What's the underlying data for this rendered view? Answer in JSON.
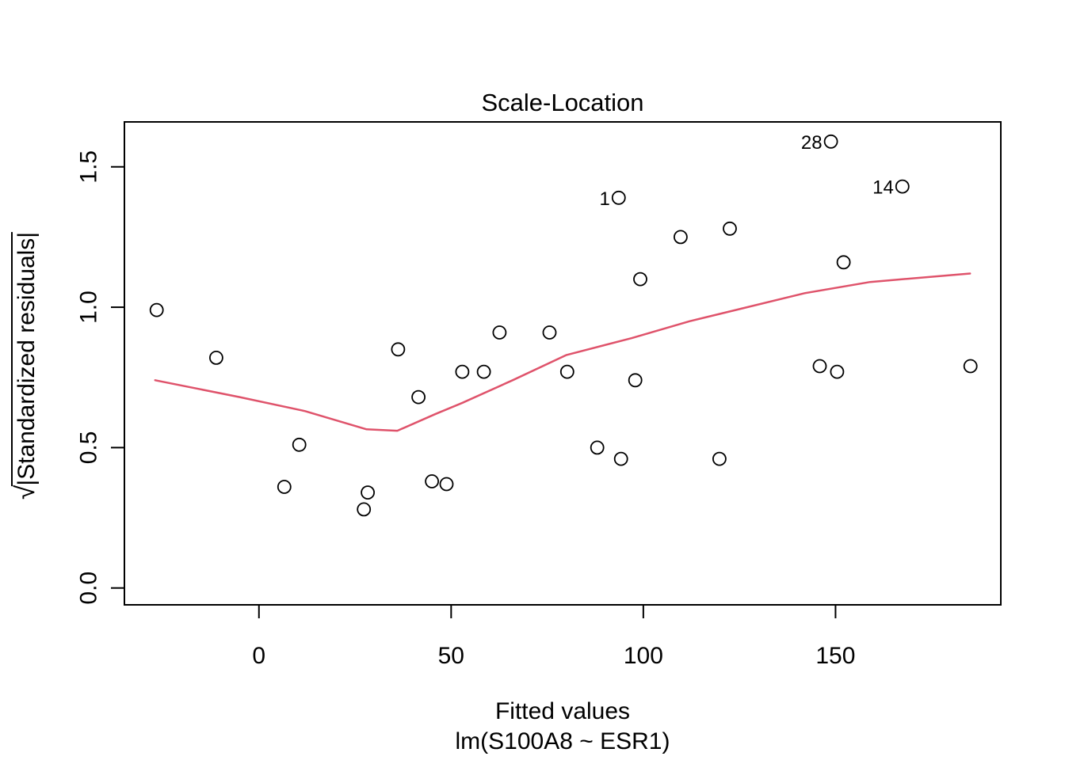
{
  "figure": {
    "title": "Scale-Location",
    "xlabel": "Fitted values",
    "xlabel2": "lm(S100A8 ~ ESR1)",
    "ylabel_radical": "√",
    "ylabel_text": "|Standardized residuals|",
    "colors": {
      "smooth_line": "#DF536B",
      "points": "#000000",
      "background": "#FFFFFF"
    }
  },
  "chart_data": {
    "type": "scatter",
    "title": "Scale-Location",
    "xlabel": "Fitted values",
    "sublabel": "lm(S100A8 ~ ESR1)",
    "ylabel": "√|Standardized residuals|",
    "grid": false,
    "legend": false,
    "xlim": [
      -35,
      193
    ],
    "ylim": [
      -0.06,
      1.66
    ],
    "x_ticks": [
      0,
      50,
      100,
      150
    ],
    "x_tick_labels": [
      "0",
      "50",
      "100",
      "150"
    ],
    "y_ticks": [
      0.0,
      0.5,
      1.0,
      1.5
    ],
    "y_tick_labels": [
      "0.0",
      "0.5",
      "1.0",
      "1.5"
    ],
    "points": [
      [
        -26.6,
        0.99
      ],
      [
        -11.1,
        0.82
      ],
      [
        6.6,
        0.36
      ],
      [
        10.5,
        0.51
      ],
      [
        27.3,
        0.28
      ],
      [
        28.3,
        0.34
      ],
      [
        36.2,
        0.85
      ],
      [
        41.5,
        0.68
      ],
      [
        45.0,
        0.38
      ],
      [
        48.8,
        0.37
      ],
      [
        52.9,
        0.77
      ],
      [
        58.5,
        0.77
      ],
      [
        62.6,
        0.91
      ],
      [
        75.6,
        0.91
      ],
      [
        80.2,
        0.77
      ],
      [
        88.0,
        0.5
      ],
      [
        94.2,
        0.46
      ],
      [
        97.9,
        0.74
      ],
      [
        99.2,
        1.1
      ],
      [
        109.7,
        1.25
      ],
      [
        119.8,
        0.46
      ],
      [
        122.5,
        1.28
      ],
      [
        145.9,
        0.79
      ],
      [
        150.4,
        0.77
      ],
      [
        152.1,
        1.16
      ],
      [
        185.1,
        0.79
      ]
    ],
    "labeled_points": [
      {
        "label": "1",
        "x": 93.6,
        "y": 1.39
      },
      {
        "label": "28",
        "x": 148.8,
        "y": 1.59
      },
      {
        "label": "14",
        "x": 167.4,
        "y": 1.43
      }
    ],
    "smooth_line": [
      [
        -27,
        0.74
      ],
      [
        -5,
        0.68
      ],
      [
        12,
        0.63
      ],
      [
        28,
        0.565
      ],
      [
        36,
        0.56
      ],
      [
        46,
        0.62
      ],
      [
        53,
        0.66
      ],
      [
        66,
        0.74
      ],
      [
        80,
        0.83
      ],
      [
        97,
        0.89
      ],
      [
        112,
        0.95
      ],
      [
        124,
        0.99
      ],
      [
        142,
        1.05
      ],
      [
        159,
        1.09
      ],
      [
        185,
        1.12
      ]
    ],
    "smooth_color": "#DF536B",
    "point_color": "#000000"
  }
}
